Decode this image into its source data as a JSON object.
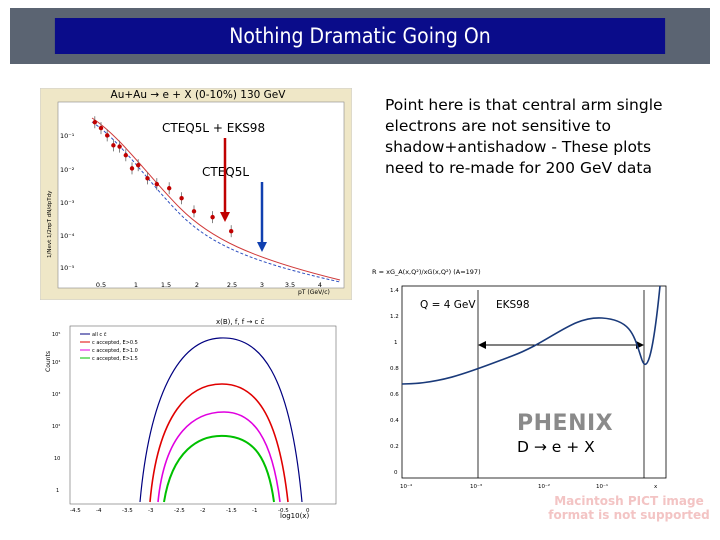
{
  "slide": {
    "title": "Nothing Dramatic Going On",
    "body_text": "Point here is that central arm single electrons are not sensitive to shadow+antishadow - These plots need to re-made for 200 GeV data",
    "watermark": "Macintosh PICT image format is not supported"
  },
  "chart_data": [
    {
      "type": "scatter",
      "title": "Au+Au → e + X  (0-10%) 130 GeV",
      "annotations": [
        "CTEQ5L + EKS98",
        "CTEQ5L"
      ],
      "xlabel": "pT (GeV/c)",
      "ylabel": "1/Nevt 1/2πpT dN/dpTdy",
      "x_ticks": [
        "0.5",
        "1",
        "1.5",
        "2",
        "2.5",
        "3",
        "3.5",
        "4"
      ],
      "y_ticks": [
        "10⁻¹",
        "10⁻²",
        "10⁻³",
        "10⁻⁴",
        "10⁻⁵"
      ],
      "ylog": true,
      "accent_colors": [
        "#c00000",
        "#1040b0"
      ],
      "series": [
        {
          "x": [
            0.4,
            0.5,
            0.6,
            0.7,
            0.8,
            0.9,
            1.0,
            1.1,
            1.25,
            1.4,
            1.6,
            1.8,
            2.0,
            2.3,
            2.6
          ],
          "y": [
            0.3,
            0.2,
            0.12,
            0.06,
            0.055,
            0.03,
            0.012,
            0.015,
            0.006,
            0.004,
            0.003,
            0.0015,
            0.0006,
            0.0004,
            0.00015
          ]
        }
      ]
    },
    {
      "type": "line",
      "title": "x(B), f, f → c c̄",
      "xlabel": "log10(x)",
      "ylabel": "Counts",
      "x_ticks": [
        "-4.5",
        "-4",
        "-3.5",
        "-3",
        "-2.5",
        "-2",
        "-1.5",
        "-1",
        "-0.5",
        "0"
      ],
      "y_ticks": [
        "10⁵",
        "10⁴",
        "10³",
        "10²",
        "10",
        "1"
      ],
      "legend": [
        "all c c̄",
        "c accepted, E>0.5",
        "c accepted, E>1.0",
        "c accepted, E>1.5"
      ],
      "series_colors": [
        "#000080",
        "#e00000",
        "#e000e0",
        "#00c000"
      ]
    },
    {
      "type": "line",
      "title": "R = xG_A(x,Q²)/xG(x,Q²) (A=197)",
      "annotations": [
        "Q = 4 GeV",
        "EKS98"
      ],
      "x_ticks": [
        "10⁻⁴",
        "10⁻³",
        "10⁻²",
        "10⁻¹",
        "x"
      ],
      "y_ticks": [
        "1.4",
        "1.2",
        "1",
        "0.8",
        "0.6",
        "0.4",
        "0.2",
        "0"
      ],
      "ylim": [
        0,
        1.4
      ],
      "logo": "PHENIX",
      "reaction": "D → e + X"
    }
  ]
}
